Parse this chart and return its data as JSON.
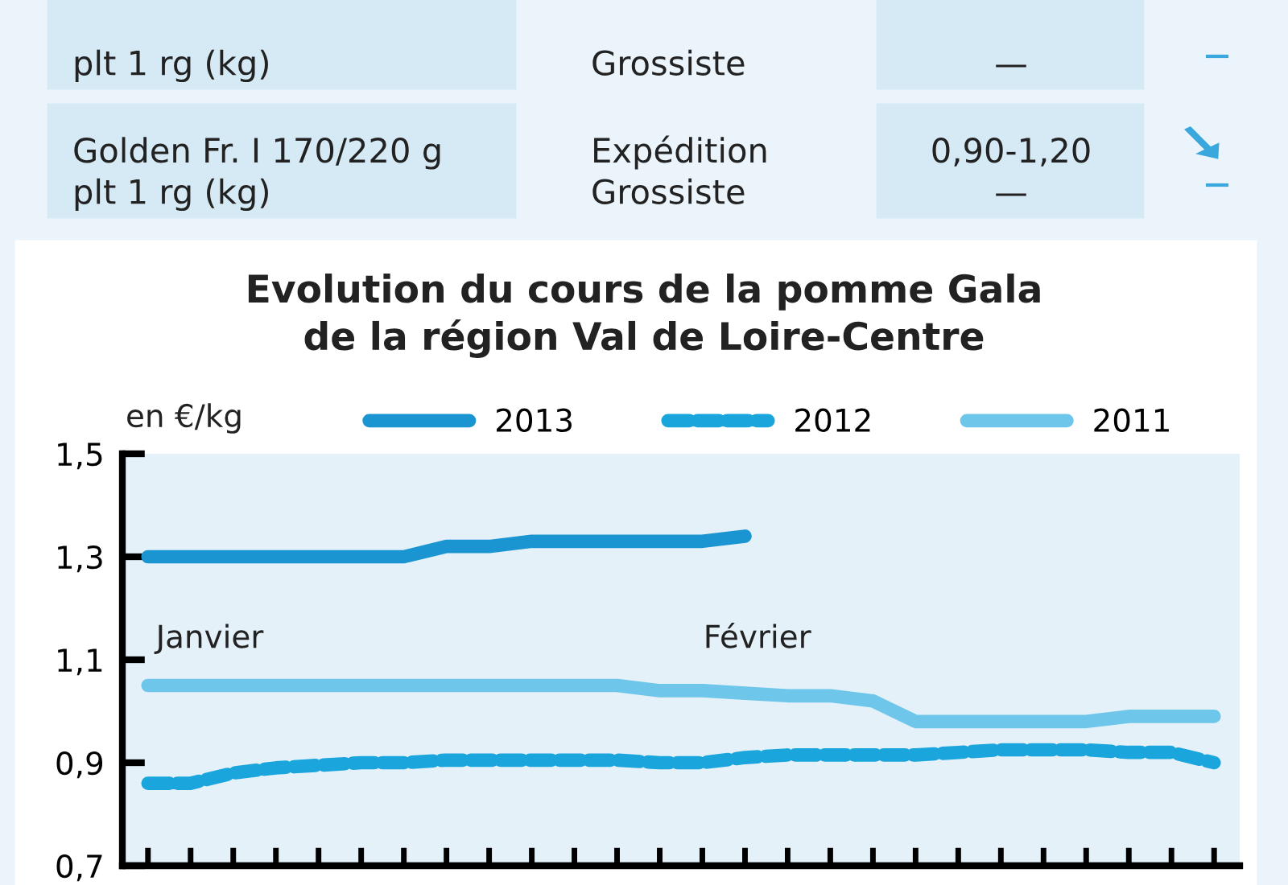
{
  "chart_data": {
    "type": "line",
    "title": "Evolution du cours de la pomme Gala\nde la région Val de Loire-Centre",
    "ylabel": "en €/kg",
    "annotations": [
      "plt 1 rg (kg)",
      "Grossiste",
      "—",
      "Golden Fr. I 170/220 g\nplt 1 rg (kg)",
      "Expédition\nGrossiste",
      "0,90-1,20\n—",
      "Janvier",
      "Février"
    ],
    "categories": [
      null,
      null,
      null,
      null,
      null,
      null,
      null,
      null,
      null,
      null,
      null,
      null,
      null,
      null,
      null,
      null,
      null,
      null,
      null,
      null,
      null,
      null,
      null,
      null,
      null,
      null
    ],
    "series": [
      {
        "name": "2013",
        "color": "#1a95d2",
        "line_style": "solid",
        "values": [
          1.3,
          1.3,
          1.3,
          1.3,
          1.3,
          1.3,
          1.3,
          1.32,
          1.32,
          1.33,
          1.33,
          1.33,
          1.33,
          1.33,
          1.34,
          null,
          null,
          null,
          null,
          null,
          null,
          null,
          null,
          null,
          null,
          null
        ]
      },
      {
        "name": "2012",
        "color": "#1aa6dc",
        "line_style": "dashed",
        "values": [
          0.86,
          0.86,
          0.88,
          0.89,
          0.895,
          0.9,
          0.9,
          0.905,
          0.905,
          0.905,
          0.905,
          0.905,
          0.9,
          0.9,
          0.91,
          0.915,
          0.915,
          0.915,
          0.915,
          0.92,
          0.925,
          0.925,
          0.925,
          0.92,
          0.92,
          0.9
        ]
      },
      {
        "name": "2011",
        "color": "#6ec6ea",
        "line_style": "solid",
        "values": [
          1.05,
          1.05,
          1.05,
          1.05,
          1.05,
          1.05,
          1.05,
          1.05,
          1.05,
          1.05,
          1.05,
          1.05,
          1.04,
          1.04,
          1.035,
          1.03,
          1.03,
          1.02,
          0.98,
          0.98,
          0.98,
          0.98,
          0.98,
          0.99,
          0.99,
          0.99
        ]
      }
    ],
    "ylim": [
      0.7,
      1.5
    ],
    "yticks": [
      {
        "value": 0.7,
        "label": "0,7"
      },
      {
        "value": 0.9,
        "label": "0,9"
      },
      {
        "value": 1.1,
        "label": "1,1"
      },
      {
        "value": 1.3,
        "label": "1,3"
      },
      {
        "value": 1.5,
        "label": "1,5"
      }
    ],
    "grid": false,
    "legend": "top",
    "marker": "none"
  }
}
